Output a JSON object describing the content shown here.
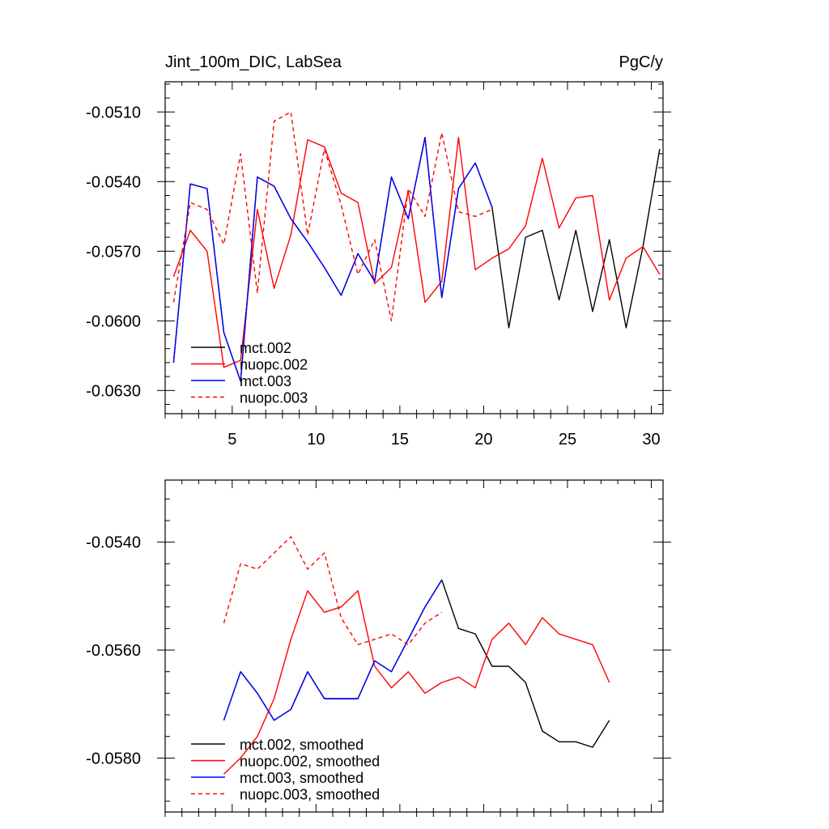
{
  "chart_data": [
    {
      "type": "line",
      "title": "Jint_100m_DIC, LabSea",
      "units": "PgC/y",
      "xlabel": "",
      "ylabel": "",
      "xlim": [
        1,
        30.7
      ],
      "ylim": [
        -0.064,
        -0.0497
      ],
      "xticks": [
        5,
        10,
        15,
        20,
        25,
        30
      ],
      "xtick_labels": [
        "5",
        "10",
        "15",
        "20",
        "25",
        "30"
      ],
      "yticks": [
        -0.051,
        -0.054,
        -0.057,
        -0.06,
        -0.063
      ],
      "ytick_labels": [
        "-0.0510",
        "-0.0540",
        "-0.0570",
        "-0.0600",
        "-0.0630"
      ],
      "series": [
        {
          "name": "mct.002",
          "color": "#000000",
          "dash": "solid",
          "x": [
            1.5,
            2.5,
            3.5,
            4.5,
            5.5,
            6.5,
            7.5,
            8.5,
            9.5,
            10.5,
            11.5,
            12.5,
            13.5,
            14.5,
            15.5,
            16.5,
            17.5,
            18.5,
            19.5,
            20.5,
            21.5,
            22.5,
            23.5,
            24.5,
            25.5,
            26.5,
            27.5,
            28.5,
            29.5,
            30.5
          ],
          "values": [
            -0.0618,
            -0.0541,
            -0.0543,
            -0.0605,
            -0.0626,
            -0.0538,
            -0.0542,
            -0.0556,
            -0.0566,
            -0.0577,
            -0.0589,
            -0.0571,
            -0.0583,
            -0.0538,
            -0.0556,
            -0.0521,
            -0.059,
            -0.0543,
            -0.0532,
            -0.0551,
            -0.0603,
            -0.0564,
            -0.0561,
            -0.0591,
            -0.0561,
            -0.0596,
            -0.0565,
            -0.0603,
            -0.0568,
            -0.0526
          ]
        },
        {
          "name": "nuopc.002",
          "color": "#ff0000",
          "dash": "solid",
          "x": [
            1.5,
            2.5,
            3.5,
            4.5,
            5.5,
            6.5,
            7.5,
            8.5,
            9.5,
            10.5,
            11.5,
            12.5,
            13.5,
            14.5,
            15.5,
            16.5,
            17.5,
            18.5,
            19.5,
            20.5,
            21.5,
            22.5,
            23.5,
            24.5,
            25.5,
            26.5,
            27.5,
            28.5,
            29.5,
            30.5
          ],
          "values": [
            -0.0581,
            -0.0561,
            -0.057,
            -0.062,
            -0.0617,
            -0.0552,
            -0.0586,
            -0.0563,
            -0.0522,
            -0.0525,
            -0.0545,
            -0.0549,
            -0.0584,
            -0.0577,
            -0.0544,
            -0.0592,
            -0.0583,
            -0.0521,
            -0.0578,
            -0.0573,
            -0.0569,
            -0.0559,
            -0.053,
            -0.056,
            -0.0547,
            -0.0546,
            -0.0591,
            -0.0573,
            -0.0568,
            -0.058
          ]
        },
        {
          "name": "mct.003",
          "color": "#0000ff",
          "dash": "solid",
          "x": [
            1.5,
            2.5,
            3.5,
            4.5,
            5.5,
            6.5,
            7.5,
            8.5,
            9.5,
            10.5,
            11.5,
            12.5,
            13.5,
            14.5,
            15.5,
            16.5,
            17.5,
            18.5,
            19.5,
            20.5
          ],
          "values": [
            -0.0618,
            -0.0541,
            -0.0543,
            -0.0605,
            -0.0626,
            -0.0538,
            -0.0542,
            -0.0556,
            -0.0566,
            -0.0577,
            -0.0589,
            -0.0571,
            -0.0583,
            -0.0538,
            -0.0556,
            -0.0521,
            -0.059,
            -0.0543,
            -0.0532,
            -0.0551
          ]
        },
        {
          "name": "nuopc.003",
          "color": "#ff0000",
          "dash": "dashed",
          "x": [
            1.5,
            2.5,
            3.5,
            4.5,
            5.5,
            6.5,
            7.5,
            8.5,
            9.5,
            10.5,
            11.5,
            12.5,
            13.5,
            14.5,
            15.5,
            16.5,
            17.5,
            18.5,
            19.5,
            20.5
          ],
          "values": [
            -0.0592,
            -0.0549,
            -0.0552,
            -0.0567,
            -0.0528,
            -0.0588,
            -0.0514,
            -0.051,
            -0.0563,
            -0.0526,
            -0.055,
            -0.058,
            -0.0565,
            -0.06,
            -0.0543,
            -0.0555,
            -0.0519,
            -0.0553,
            -0.0555,
            -0.0552
          ]
        }
      ],
      "legend": [
        "mct.002",
        "nuopc.002",
        "mct.003",
        "nuopc.003"
      ],
      "legend_position": "bottom-left"
    },
    {
      "type": "line",
      "title": "",
      "xlabel": "",
      "ylabel": "",
      "xlim": [
        1,
        30.7
      ],
      "ylim": [
        -0.059,
        -0.05285
      ],
      "xticks": [
        5,
        10,
        15,
        20,
        25,
        30
      ],
      "xtick_labels": [],
      "yticks": [
        -0.054,
        -0.056,
        -0.058
      ],
      "ytick_labels": [
        "-0.0540",
        "-0.0560",
        "-0.0580"
      ],
      "series": [
        {
          "name": "mct.002, smoothed",
          "color": "#000000",
          "dash": "solid",
          "x": [
            4.5,
            5.5,
            6.5,
            7.5,
            8.5,
            9.5,
            10.5,
            11.5,
            12.5,
            13.5,
            14.5,
            15.5,
            16.5,
            17.5,
            18.5,
            19.5,
            20.5,
            21.5,
            22.5,
            23.5,
            24.5,
            25.5,
            26.5,
            27.5
          ],
          "values": [
            -0.0573,
            -0.0564,
            -0.0568,
            -0.0573,
            -0.0571,
            -0.0564,
            -0.0569,
            -0.0569,
            -0.0569,
            -0.0562,
            -0.0564,
            -0.0558,
            -0.0552,
            -0.0547,
            -0.0556,
            -0.0557,
            -0.0563,
            -0.0563,
            -0.0566,
            -0.0575,
            -0.0577,
            -0.0577,
            -0.0578,
            -0.0573
          ]
        },
        {
          "name": "nuopc.002, smoothed",
          "color": "#ff0000",
          "dash": "solid",
          "x": [
            4.5,
            5.5,
            6.5,
            7.5,
            8.5,
            9.5,
            10.5,
            11.5,
            12.5,
            13.5,
            14.5,
            15.5,
            16.5,
            17.5,
            18.5,
            19.5,
            20.5,
            21.5,
            22.5,
            23.5,
            24.5,
            25.5,
            26.5,
            27.5
          ],
          "values": [
            -0.0583,
            -0.058,
            -0.0576,
            -0.0569,
            -0.0558,
            -0.0549,
            -0.0553,
            -0.0552,
            -0.0549,
            -0.0563,
            -0.0567,
            -0.0564,
            -0.0568,
            -0.0566,
            -0.0565,
            -0.0567,
            -0.0558,
            -0.0555,
            -0.0559,
            -0.0554,
            -0.0557,
            -0.0558,
            -0.0559,
            -0.0566
          ]
        },
        {
          "name": "mct.003, smoothed",
          "color": "#0000ff",
          "dash": "solid",
          "x": [
            4.5,
            5.5,
            6.5,
            7.5,
            8.5,
            9.5,
            10.5,
            11.5,
            12.5,
            13.5,
            14.5,
            15.5,
            16.5,
            17.5
          ],
          "values": [
            -0.0573,
            -0.0564,
            -0.0568,
            -0.0573,
            -0.0571,
            -0.0564,
            -0.0569,
            -0.0569,
            -0.0569,
            -0.0562,
            -0.0564,
            -0.0558,
            -0.0552,
            -0.0547
          ]
        },
        {
          "name": "nuopc.003, smoothed",
          "color": "#ff0000",
          "dash": "dashed",
          "x": [
            4.5,
            5.5,
            6.5,
            7.5,
            8.5,
            9.5,
            10.5,
            11.5,
            12.5,
            13.5,
            14.5,
            15.5,
            16.5,
            17.5
          ],
          "values": [
            -0.0555,
            -0.0544,
            -0.0545,
            -0.0542,
            -0.0539,
            -0.0545,
            -0.0542,
            -0.0554,
            -0.0559,
            -0.0558,
            -0.0557,
            -0.0559,
            -0.0555,
            -0.0553
          ]
        }
      ],
      "legend": [
        "mct.002, smoothed",
        "nuopc.002, smoothed",
        "mct.003, smoothed",
        "nuopc.003, smoothed"
      ],
      "legend_position": "bottom-left"
    }
  ]
}
